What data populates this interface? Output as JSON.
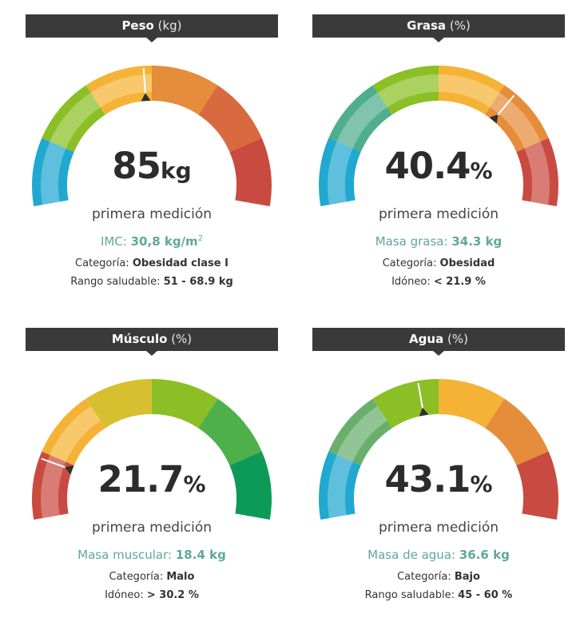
{
  "cards": [
    {
      "title": "Peso",
      "unit": "(kg)",
      "value": "85",
      "value_unit": "kg",
      "caption": "primera medición",
      "metric_label": "IMC:",
      "metric_value": "30,8 kg/m",
      "metric_sup": "2",
      "row1_label": "Categoría:",
      "row1_value": "Obesidad clase I",
      "row2_label": "Rango saludable:",
      "row2_value": "51 - 68.9 kg",
      "segment_colors": [
        "#21a8d0",
        "#8bbf25",
        "#f5b335",
        "#e58d3a",
        "#d96a3f",
        "#c94a40"
      ],
      "highlighted_segment": 2,
      "pointer_fraction": 0.48
    },
    {
      "title": "Grasa",
      "unit": "(%)",
      "value": "40.4",
      "value_unit": "%",
      "caption": "primera medición",
      "metric_label": "Masa grasa:",
      "metric_value": "34.3 kg",
      "metric_sup": "",
      "row1_label": "Categoría:",
      "row1_value": "Obesidad",
      "row2_label": "Idóneo:",
      "row2_value": "< 21.9 %",
      "segment_colors": [
        "#21a8d0",
        "#4fae8e",
        "#8bbf25",
        "#f5b335",
        "#e58d3a",
        "#c94a40"
      ],
      "highlighted_segment": 5,
      "pointer_fraction": 0.7
    },
    {
      "title": "Músculo",
      "unit": "(%)",
      "value": "21.7",
      "value_unit": "%",
      "caption": "primera medición",
      "metric_label": "Masa muscular:",
      "metric_value": "18.4 kg",
      "metric_sup": "",
      "row1_label": "Categoría:",
      "row1_value": "Malo",
      "row2_label": "Idóneo:",
      "row2_value": "> 30.2 %",
      "segment_colors": [
        "#c94a40",
        "#f5b335",
        "#d6c030",
        "#8bbf25",
        "#4db04a",
        "#0d9a58"
      ],
      "highlighted_segment": 1,
      "pointer_fraction": 0.15
    },
    {
      "title": "Agua",
      "unit": "(%)",
      "value": "43.1",
      "value_unit": "%",
      "caption": "primera medición",
      "metric_label": "Masa de agua:",
      "metric_value": "36.6 kg",
      "metric_sup": "",
      "row1_label": "Categoría:",
      "row1_value": "Bajo",
      "row2_label": "Rango saludable:",
      "row2_value": "45 - 60 %",
      "segment_colors": [
        "#21a8d0",
        "#6aae6c",
        "#8bbf25",
        "#f5b335",
        "#e58d3a",
        "#c94a40"
      ],
      "highlighted_segment": 1,
      "pointer_fraction": 0.45
    }
  ]
}
